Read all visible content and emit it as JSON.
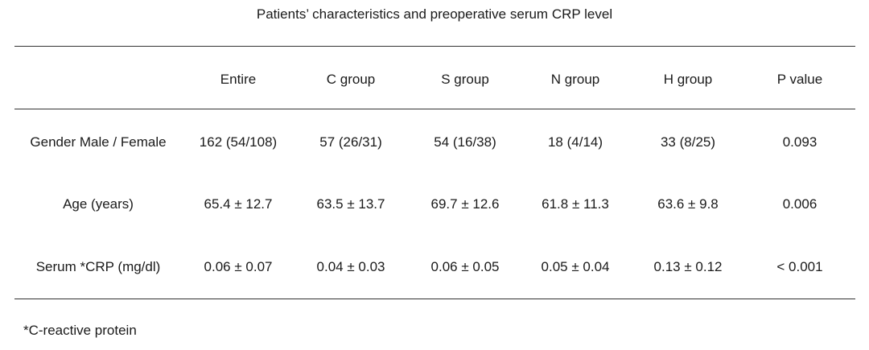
{
  "title": "Patients’ characteristics and preoperative serum CRP level",
  "table": {
    "headers": [
      "",
      "Entire",
      "C group",
      "S group",
      "N group",
      "H group",
      "P value"
    ],
    "rows": [
      {
        "label": "Gender Male / Female",
        "entire": "162 (54/108)",
        "c_group": "57 (26/31)",
        "s_group": "54 (16/38)",
        "n_group": "18 (4/14)",
        "h_group": "33 (8/25)",
        "p_value": "0.093"
      },
      {
        "label": "Age (years)",
        "entire": "65.4 ± 12.7",
        "c_group": "63.5 ± 13.7",
        "s_group": "69.7 ± 12.6",
        "n_group": "61.8 ± 11.3",
        "h_group": "63.6 ± 9.8",
        "p_value": "0.006"
      },
      {
        "label": "Serum *CRP (mg/dl)",
        "entire": "0.06 ± 0.07",
        "c_group": "0.04 ± 0.03",
        "s_group": "0.06 ± 0.05",
        "n_group": "0.05 ± 0.04",
        "h_group": "0.13 ± 0.12",
        "p_value": "< 0.001"
      }
    ]
  },
  "footnote": "*C-reactive protein"
}
